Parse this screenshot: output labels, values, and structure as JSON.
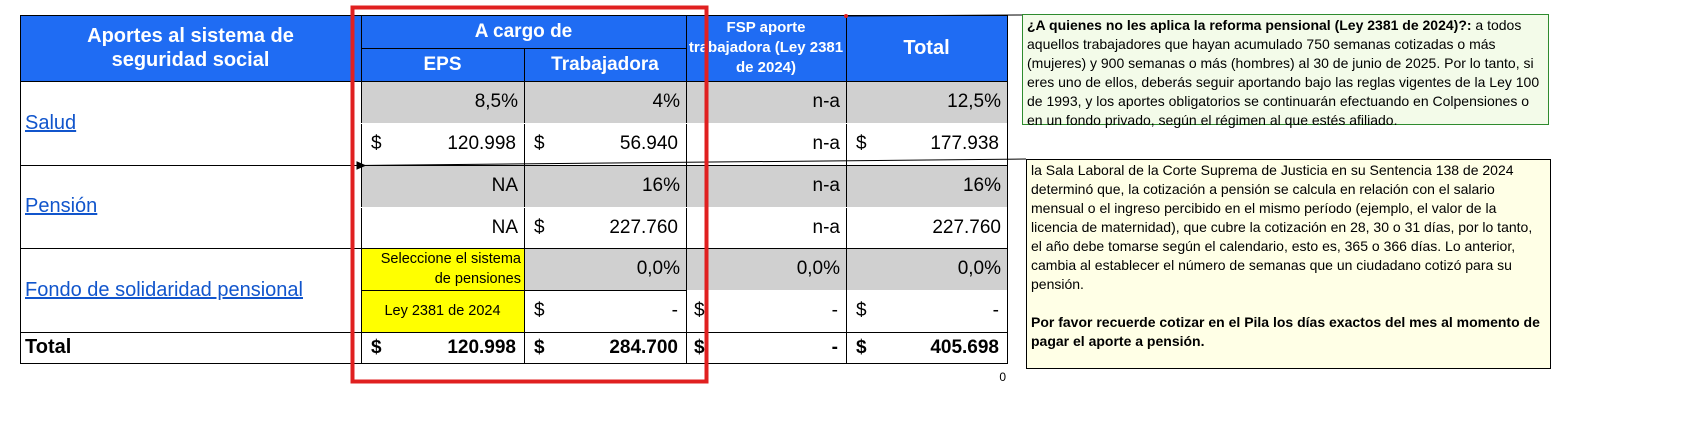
{
  "table": {
    "header": {
      "concept": "Aportes al sistema de seguridad social",
      "a_cargo_de": "A cargo de",
      "eps": "EPS",
      "trabajadora": "Trabajadora",
      "fsp": "FSP aporte trabajadora (Ley 2381 de 2024)",
      "total": "Total"
    },
    "rows": {
      "salud": {
        "label": "Salud",
        "pct": {
          "eps": "8,5%",
          "trab": "4%",
          "fsp": "n-a",
          "total": "12,5%"
        },
        "val": {
          "eps": "120.998",
          "trab": "56.940",
          "fsp": "n-a",
          "total": "177.938"
        }
      },
      "pension": {
        "label": "Pensión",
        "pct": {
          "eps": "NA",
          "trab": "16%",
          "fsp": "n-a",
          "total": "16%"
        },
        "val": {
          "eps": "NA",
          "trab": "227.760",
          "fsp": "n-a",
          "total": "227.760"
        }
      },
      "fondo": {
        "label": "Fondo de solidaridad pensional",
        "pct": {
          "eps": "Seleccione el sistema de pensiones",
          "trab": "0,0%",
          "fsp": "0,0%",
          "total": "0,0%"
        },
        "val": {
          "eps": "Ley 2381 de 2024",
          "trab": "-",
          "fsp": "-",
          "total": "-"
        }
      }
    },
    "totals": {
      "label": "Total",
      "eps": "120.998",
      "trab": "284.700",
      "fsp": "-",
      "total": "405.698"
    },
    "currency": "$",
    "footer_zero": "0"
  },
  "notes": {
    "note1_bold": "¿A quienes no les aplica la reforma pensional (Ley 2381 de 2024)?:",
    "note1_text": " a todos aquellos trabajadores que hayan acumulado 750 semanas cotizadas o más (mujeres) y 900 semanas o más (hombres) al 30 de junio de 2025. Por lo tanto, si eres uno de ellos, deberás seguir aportando bajo las reglas vigentes de la Ley 100 de 1993, y los aportes obligatorios se continuarán efectuando en Colpensiones o en un fondo privado, según el régimen al que estés afiliado.",
    "note2_text": "la Sala Laboral de la Corte Suprema de Justicia en su Sentencia 138 de 2024 determinó que, la cotización a pensión se calcula en relación con el salario mensual o el ingreso percibido en el mismo período (ejemplo, el valor de la licencia de maternidad), que cubre la cotización en 28, 30 o 31 días, por lo tanto, el año debe tomarse según el calendario, esto es, 365 o 366 días. Lo anterior, cambia al establecer el número de semanas que un ciudadano cotizó para su pensión.",
    "note2_bold": "Por favor recuerde cotizar en el Pila los días exactos del mes al momento de pagar el aporte a pensión."
  },
  "colors": {
    "header": "#1f6cf3",
    "gray": "#d0d0d0",
    "yellow": "#ffff00",
    "highlight": "#e02020",
    "note1_bg": "#f3fbe9",
    "note2_bg": "#ffffe6"
  }
}
